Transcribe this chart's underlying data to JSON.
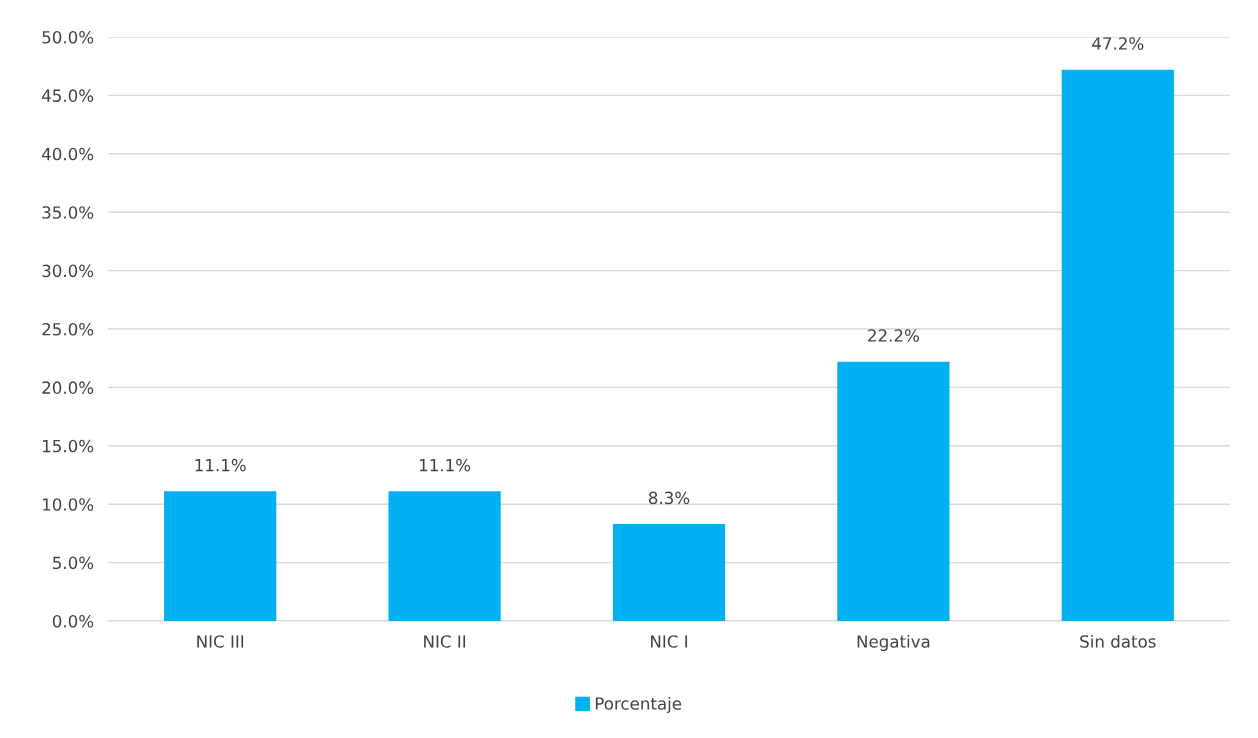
{
  "chart_data": {
    "type": "bar",
    "categories": [
      "NIC III",
      "NIC II",
      "NIC I",
      "Negativa",
      "Sin datos"
    ],
    "series": [
      {
        "name": "Porcentaje",
        "color": "#00b0f0",
        "values": [
          11.1,
          11.1,
          8.3,
          22.2,
          47.2
        ],
        "value_labels": [
          "11.1%",
          "11.1%",
          "8.3%",
          "22.2%",
          "47.2%"
        ]
      }
    ],
    "ylim": [
      0,
      50
    ],
    "yticks": [
      {
        "value": 0,
        "label": "0.0%"
      },
      {
        "value": 5,
        "label": "5.0%"
      },
      {
        "value": 10,
        "label": "10.0%"
      },
      {
        "value": 15,
        "label": "15.0%"
      },
      {
        "value": 20,
        "label": "20.0%"
      },
      {
        "value": 25,
        "label": "25.0%"
      },
      {
        "value": 30,
        "label": "30.0%"
      },
      {
        "value": 35,
        "label": "35.0%"
      },
      {
        "value": 40,
        "label": "40.0%"
      },
      {
        "value": 45,
        "label": "45.0%"
      },
      {
        "value": 50,
        "label": "50.0%"
      }
    ],
    "grid": "y",
    "legend": "bottom"
  }
}
